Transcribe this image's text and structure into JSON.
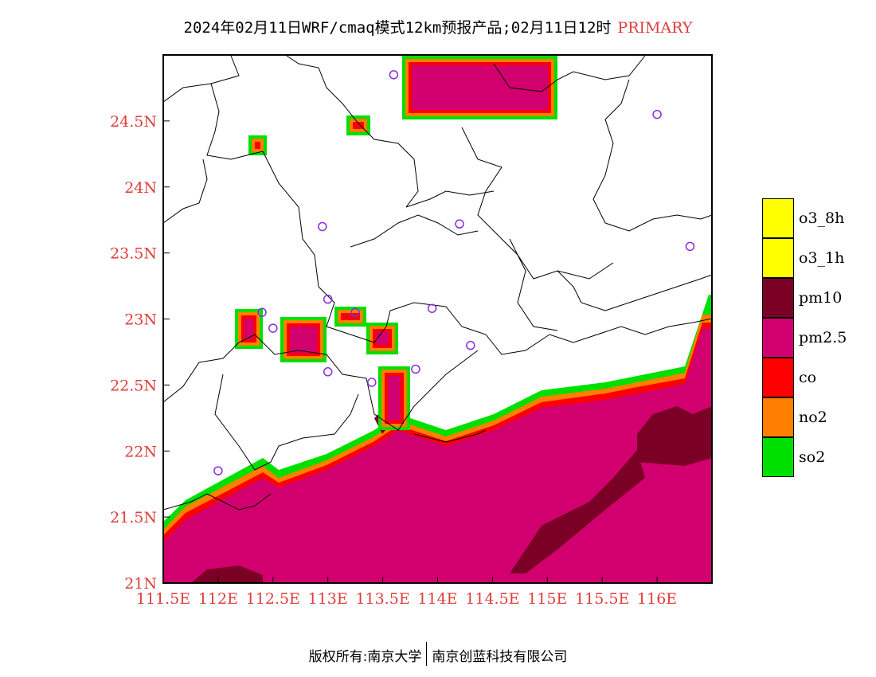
{
  "header": {
    "title": "2024年02月11日WRF/cmaq模式12km预报产品;02月11日12时",
    "tag": "PRIMARY",
    "tag_color": "#e03c3c"
  },
  "map": {
    "lon_range": [
      111.5,
      116.5
    ],
    "lat_range": [
      21.0,
      25.0
    ],
    "x_tick_values": [
      111.5,
      112,
      112.5,
      113,
      113.5,
      114,
      114.5,
      115,
      115.5,
      116
    ],
    "x_tick_labels": [
      "111.5E",
      "112E",
      "112.5E",
      "113E",
      "113.5E",
      "114E",
      "114.5E",
      "115E",
      "115.5E",
      "116E"
    ],
    "y_tick_values": [
      21,
      21.5,
      22,
      22.5,
      23,
      23.5,
      24,
      24.5
    ],
    "y_tick_labels": [
      "21N",
      "21.5N",
      "22N",
      "22.5N",
      "23N",
      "23.5N",
      "24N",
      "24.5N"
    ],
    "label_color": "#e03c3c",
    "station_color": "#8a2be2",
    "stations": [
      [
        113.6,
        24.85
      ],
      [
        116.0,
        24.55
      ],
      [
        112.95,
        23.7
      ],
      [
        114.2,
        23.72
      ],
      [
        116.3,
        23.55
      ],
      [
        113.0,
        23.15
      ],
      [
        112.4,
        23.05
      ],
      [
        112.5,
        22.93
      ],
      [
        113.25,
        23.05
      ],
      [
        113.95,
        23.08
      ],
      [
        114.3,
        22.8
      ],
      [
        113.0,
        22.6
      ],
      [
        113.4,
        22.52
      ],
      [
        113.8,
        22.62
      ],
      [
        112.0,
        21.85
      ]
    ]
  },
  "legend": [
    {
      "label": "o3_8h",
      "color": "#ffff00"
    },
    {
      "label": "o3_1h",
      "color": "#ffff00"
    },
    {
      "label": "pm10",
      "color": "#7a0026"
    },
    {
      "label": "pm2.5",
      "color": "#d2006e"
    },
    {
      "label": "co",
      "color": "#ff0000"
    },
    {
      "label": "no2",
      "color": "#ff7f00"
    },
    {
      "label": "so2",
      "color": "#00e000"
    }
  ],
  "footer": {
    "left": "版权所有:南京大学",
    "right": "南京创蓝科技有限公司"
  }
}
